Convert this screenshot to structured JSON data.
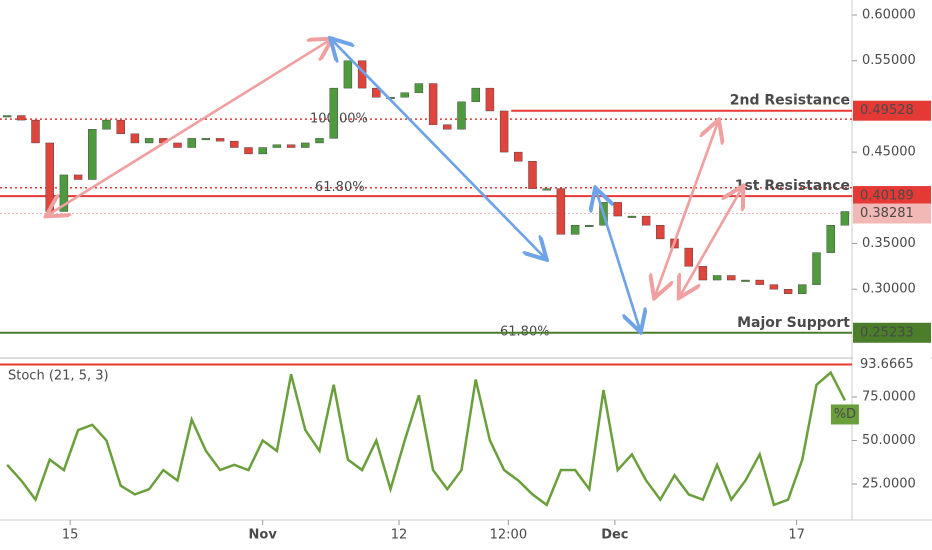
{
  "chart_data": [
    {
      "type": "candlestick",
      "up_color": "#4f9a3f",
      "down_color": "#e0453d",
      "values": [
        0.49,
        0.485,
        0.46,
        0.385,
        0.425,
        0.42,
        0.475,
        0.485,
        0.47,
        0.46,
        0.465,
        0.46,
        0.455,
        0.465,
        0.465,
        0.462,
        0.455,
        0.448,
        0.455,
        0.458,
        0.455,
        0.46,
        0.465,
        0.52,
        0.55,
        0.52,
        0.51,
        0.51,
        0.515,
        0.525,
        0.48,
        0.475,
        0.505,
        0.52,
        0.495,
        0.45,
        0.44,
        0.41,
        0.41,
        0.36,
        0.37,
        0.37,
        0.395,
        0.38,
        0.38,
        0.37,
        0.355,
        0.345,
        0.325,
        0.31,
        0.315,
        0.31,
        0.31,
        0.305,
        0.3,
        0.295,
        0.305,
        0.34,
        0.37,
        0.385
      ],
      "xlim": [
        0,
        60
      ],
      "ylim": [
        0.228,
        0.6164
      ],
      "yticks": [
        {
          "value": 0.3,
          "label": "0.30000"
        },
        {
          "value": 0.35,
          "label": "0.35000"
        },
        {
          "value": 0.45,
          "label": "0.45000"
        },
        {
          "value": 0.55,
          "label": "0.55000"
        },
        {
          "value": 0.6,
          "label": "0.60000"
        }
      ],
      "levels": [
        {
          "name": "2nd Resistance",
          "value": 0.49528,
          "color": "#e53935"
        },
        {
          "name": "1st Resistance",
          "value": 0.40189,
          "color": "#e53935"
        },
        {
          "value": 0.38281,
          "color": "#f2b8b5"
        },
        {
          "name": "Major Support",
          "value": 0.25233,
          "color": "#4b7d2b"
        }
      ],
      "fib_levels": [
        {
          "label": "100.00%",
          "value": 0.486,
          "color": "#e53935"
        },
        {
          "label": "61.80%",
          "value": 0.411,
          "color": "#e53935"
        },
        {
          "label": "61.80%",
          "value": 0.253
        }
      ]
    },
    {
      "type": "line",
      "title": "Stoch (21, 5, 3)",
      "series": [
        {
          "name": "%D",
          "color": "#6a9f3b",
          "values": [
            36,
            27,
            16,
            39,
            33,
            56,
            59,
            50,
            24,
            19,
            22,
            33,
            27,
            62,
            44,
            33,
            36,
            33,
            50,
            44,
            88,
            56,
            44,
            82,
            39,
            33,
            50,
            22,
            50,
            76,
            33,
            22,
            33,
            85,
            50,
            33,
            27,
            19,
            13,
            33,
            33,
            22,
            79,
            33,
            42,
            27,
            16,
            30,
            19,
            16,
            36,
            16,
            27,
            42,
            13,
            16,
            39,
            82,
            89,
            73
          ]
        }
      ],
      "xlim": [
        0,
        60
      ],
      "xticks": [
        {
          "value": 4.94,
          "label": "15"
        },
        {
          "value": 18.5,
          "label": "Nov"
        },
        {
          "value": 28.1,
          "label": "12"
        },
        {
          "value": 35.8,
          "label": "12:00"
        },
        {
          "value": 43.3,
          "label": "Dec"
        },
        {
          "value": 56.1,
          "label": "17"
        }
      ],
      "ylim": [
        4.3,
        95.1
      ],
      "yticks": [
        {
          "value": 25,
          "label": "25.0000"
        },
        {
          "value": 50,
          "label": "50.0000"
        },
        {
          "value": 75,
          "label": "75.0000"
        }
      ],
      "levels": [
        {
          "value": 93.6665,
          "color": "#e53935"
        }
      ]
    }
  ]
}
